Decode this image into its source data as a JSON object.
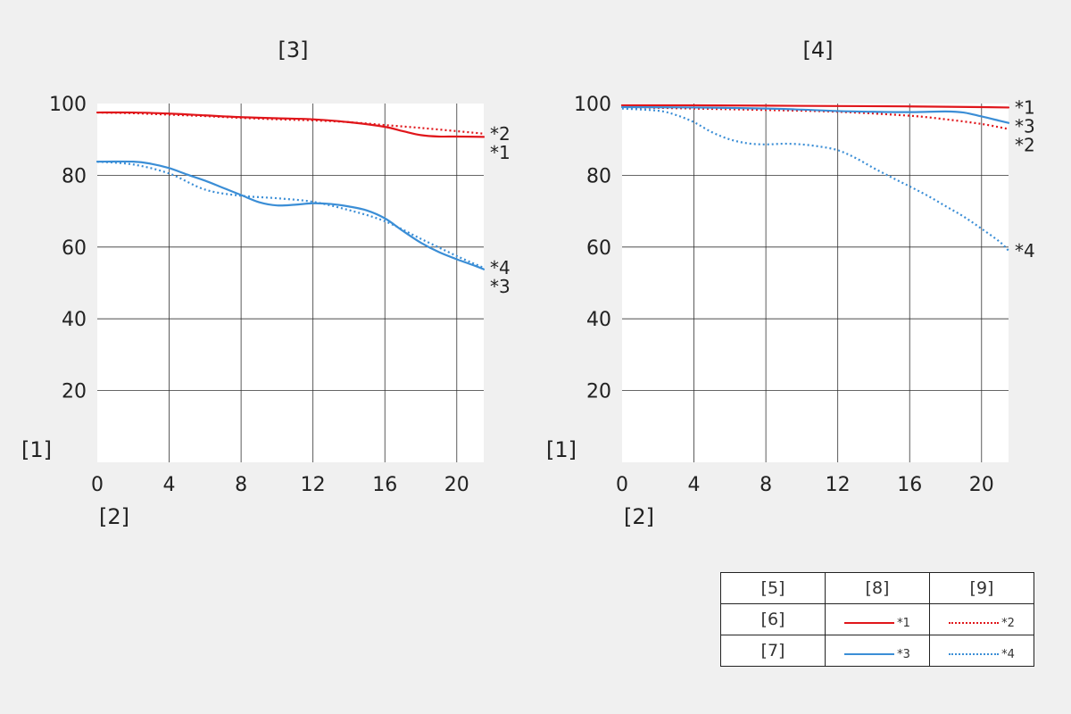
{
  "colors": {
    "red": "#e0161b",
    "blue": "#3b8ed6",
    "grid": "#333333",
    "background": "#f0f0f0",
    "plot": "#ffffff"
  },
  "chart_data": [
    {
      "type": "line",
      "title": "[3]",
      "ylabel": "[1]",
      "xlabel": "[2]",
      "xlim": [
        0,
        21.5
      ],
      "ylim": [
        0,
        100
      ],
      "xticks": [
        0,
        4,
        8,
        12,
        16,
        20
      ],
      "yticks": [
        20,
        40,
        60,
        80,
        100
      ],
      "grid": true,
      "series": [
        {
          "name": "*1",
          "color": "red",
          "style": "solid",
          "x": [
            0,
            2,
            4,
            6,
            8,
            10,
            12,
            14,
            16,
            17,
            18,
            19,
            20,
            21.5
          ],
          "y": [
            97.5,
            97.5,
            97.2,
            96.7,
            96.2,
            95.9,
            95.6,
            94.8,
            93.5,
            92.3,
            91.2,
            90.8,
            90.8,
            90.7
          ]
        },
        {
          "name": "*2",
          "color": "red",
          "style": "dotted",
          "x": [
            0,
            2,
            4,
            6,
            8,
            10,
            12,
            14,
            16,
            18,
            20,
            21.5
          ],
          "y": [
            97.5,
            97.3,
            96.9,
            96.5,
            96.0,
            95.6,
            95.3,
            94.8,
            94.0,
            93.2,
            92.3,
            91.6
          ]
        },
        {
          "name": "*3",
          "color": "blue",
          "style": "solid",
          "x": [
            0,
            2,
            3,
            4,
            5,
            6,
            7,
            8,
            9,
            10,
            11,
            12,
            13,
            14,
            15,
            16,
            17,
            18,
            19,
            20,
            21,
            21.5
          ],
          "y": [
            83.8,
            83.8,
            83.2,
            82.0,
            80.2,
            78.5,
            76.5,
            74.5,
            72.5,
            71.6,
            71.8,
            72.2,
            72.0,
            71.3,
            70.2,
            68.0,
            64.5,
            61.2,
            58.6,
            56.6,
            54.8,
            53.8
          ]
        },
        {
          "name": "*4",
          "color": "blue",
          "style": "dotted",
          "x": [
            0,
            2,
            4,
            6,
            8,
            10,
            12,
            14,
            16,
            18,
            20,
            21.5
          ],
          "y": [
            83.8,
            83.0,
            80.5,
            76.0,
            74.3,
            73.6,
            72.6,
            70.3,
            67.2,
            62.3,
            57.5,
            54.2
          ]
        }
      ],
      "end_labels": [
        "*2",
        "*1",
        "*4",
        "*3"
      ]
    },
    {
      "type": "line",
      "title": "[4]",
      "ylabel": "[1]",
      "xlabel": "[2]",
      "xlim": [
        0,
        21.5
      ],
      "ylim": [
        0,
        100
      ],
      "xticks": [
        0,
        4,
        8,
        12,
        16,
        20
      ],
      "yticks": [
        20,
        40,
        60,
        80,
        100
      ],
      "grid": true,
      "series": [
        {
          "name": "*1",
          "color": "red",
          "style": "solid",
          "x": [
            0,
            4,
            8,
            12,
            16,
            20,
            21.5
          ],
          "y": [
            99.5,
            99.5,
            99.4,
            99.3,
            99.2,
            99.0,
            98.9
          ]
        },
        {
          "name": "*2",
          "color": "red",
          "style": "dotted",
          "x": [
            0,
            4,
            8,
            12,
            16,
            18,
            20,
            21.5
          ],
          "y": [
            99.0,
            98.6,
            98.2,
            97.7,
            96.6,
            95.6,
            94.3,
            92.9
          ]
        },
        {
          "name": "*3",
          "color": "blue",
          "style": "solid",
          "x": [
            0,
            4,
            8,
            10,
            12,
            14,
            16,
            18,
            19,
            20,
            21,
            21.5
          ],
          "y": [
            99.0,
            98.9,
            98.6,
            98.3,
            97.9,
            97.7,
            97.6,
            97.8,
            97.5,
            96.4,
            95.2,
            94.6
          ]
        },
        {
          "name": "*4",
          "color": "blue",
          "style": "dotted",
          "x": [
            0,
            2,
            3,
            4,
            5,
            6,
            7,
            8,
            9,
            10,
            11,
            12,
            13,
            14,
            15,
            16,
            17,
            18,
            19,
            20,
            21,
            21.5
          ],
          "y": [
            98.6,
            98.0,
            96.8,
            94.8,
            92.0,
            90.0,
            88.9,
            88.6,
            88.8,
            88.6,
            88.0,
            87.0,
            84.8,
            82.0,
            79.4,
            76.9,
            74.3,
            71.4,
            68.5,
            65.1,
            61.5,
            59.0
          ]
        }
      ],
      "end_labels": [
        "*1",
        "*3",
        "*2",
        "*4"
      ]
    }
  ],
  "legend": {
    "header": [
      "[5]",
      "[8]",
      "[9]"
    ],
    "rows": [
      {
        "label": "[6]",
        "solid": "*1",
        "dotted": "*2",
        "color": "red"
      },
      {
        "label": "[7]",
        "solid": "*3",
        "dotted": "*4",
        "color": "blue"
      }
    ]
  }
}
